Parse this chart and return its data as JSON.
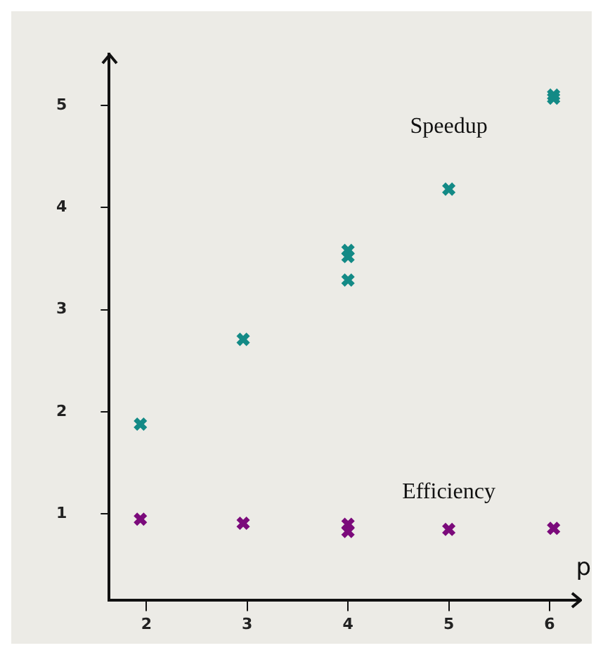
{
  "chart_data": {
    "type": "scatter",
    "xlabel": "p",
    "marker": "cross",
    "grid": false,
    "legend": false,
    "xlim": [
      1.63,
      6.3
    ],
    "xticks": [
      2,
      3,
      4,
      5,
      6
    ],
    "ylim": [
      0.16,
      5.5
    ],
    "yticks": [
      1,
      2,
      3,
      4,
      5
    ],
    "series": [
      {
        "name": "Speedup",
        "color": "#138a86",
        "x": [
          1.94,
          2.96,
          4,
          4,
          4,
          5,
          6.04,
          6.04
        ],
        "values": [
          1.88,
          2.71,
          3.58,
          3.52,
          3.29,
          4.18,
          5.1,
          5.07
        ]
      },
      {
        "name": "Efficiency",
        "color": "#7b0a7b",
        "x": [
          1.94,
          2.96,
          4,
          4,
          5,
          6.04
        ],
        "values": [
          0.95,
          0.91,
          0.9,
          0.83,
          0.85,
          0.86
        ]
      }
    ]
  }
}
